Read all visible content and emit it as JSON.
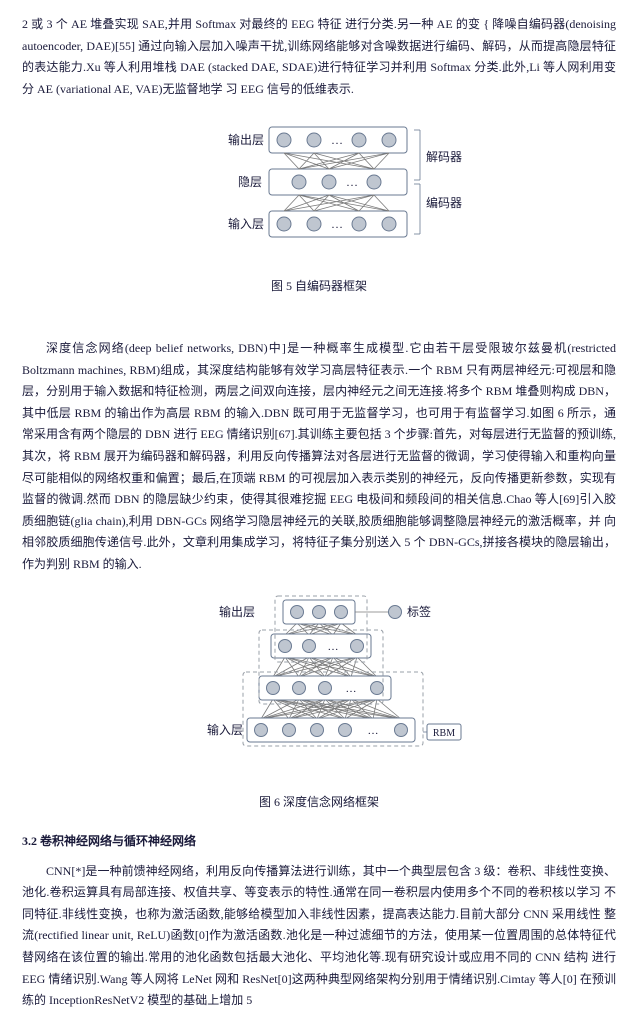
{
  "para1": "2 或 3 个 AE 堆叠实现 SAE,并用 Softmax 对最终的 EEG 特征 进行分类.另一种 AE 的变 { 降噪自编码器(denoising autoencoder, DAE)[55] 通过向输入层加入噪声干扰,训练网络能够对含噪数据进行编码、解码，从而提高隐层特征的表达能力.Xu 等人利用堆栈 DAE (stacked DAE, SDAE)进行特征学习并利用 Softmax 分类.此外,Li 等人网利用变分 AE (variational AE, VAE)无监督地学 习 EEG 信号的低维表示.",
  "fig5": {
    "caption": "图 5  自编码器框架",
    "labels": {
      "output": "输出层",
      "hidden": "隐层",
      "input": "输入层",
      "enc": "编码器",
      "dec": "解码器"
    },
    "colors": {
      "border": "#6a7a92",
      "fill": "#bfc6d0",
      "text": "#1a1a3a",
      "line": "#7a7a7a",
      "bg": "#ffffff"
    }
  },
  "para2": "深度信念网络(deep belief networks, DBN)中]是一种概率生成模型.它由若干层受限玻尔兹曼机(restricted Boltzmann machines, RBM)组成，其深度结构能够有效学习高层特征表示.一个 RBM 只有两层神经元:可视层和隐层，分别用于输入数据和特征检测，两层之间双向连接，层内神经元之间无连接.将多个 RBM 堆叠则构成 DBN，其中低层 RBM 的输出作为高层 RBM 的输入.DBN 既可用于无监督学习，也可用于有监督学习.如图 6 所示，通 常采用含有两个隐层的 DBN 进行 EEG 情绪识别[67].其训练主要包括 3 个步骤:首先，对每层进行无监督的预训练,其次，将 RBM 展开为编码器和解码器，利用反向传播算法对各层进行无监督的微调，学习使得输入和重构向量尽可能相似的网络权重和偏置；最后,在顶端 RBM 的可视层加入表示类别的神经元，反向传播更新参数，实现有 监督的微调.然而 DBN 的隐层缺少约束，使得其很难挖掘 EEG 电极间和频段间的相关信息.Chao 等人[69]引入胶质细胞链(glia chain),利用 DBN-GCs 网络学习隐层神经元的关联,胶质细胞能够调整隐层神经元的激活概率，并 向相邻胶质细胞传递信号.此外，文章利用集成学习，将特征子集分别送入 5 个 DBN-GCs,拼接各模块的隐层输出，作为判别 RBM 的输入.",
  "fig6": {
    "caption": "图 6 深度信念网络框架",
    "labels": {
      "output": "输出层",
      "input": "输入层",
      "rbm": "RBM",
      "tag": "标签"
    },
    "colors": {
      "border": "#6a7a92",
      "fill": "#bfc6d0",
      "dash": "#9aa0a8",
      "text": "#1a1a3a",
      "line": "#7a7a7a",
      "bg": "#ffffff"
    }
  },
  "section32": "3.2 卷积神经网络与循环神经网络",
  "para3": "CNN[*]是一种前馈神经网络，利用反向传播算法进行训练，其中一个典型层包含 3 级：卷积、非线性变换、池化.卷积运算具有局部连接、权值共享、等变表示的特性.通常在同一卷积层内使用多个不同的卷积核以学习 不同特征.非线性变换，也称为激活函数,能够给模型加入非线性因素，提高表达能力.目前大部分 CNN 采用线性 整流(rectified linear unit, ReLU)函数[0]作为激活函数.池化是一种过滤细节的方法，使用某一位置周围的总体特征代替网络在该位置的输出.常用的池化函数包括最大池化、平均池化等.现有研究设计或应用不同的 CNN 结构 进行 EEG 情绪识别.Wang 等人网将 LeNet 网和 ResNet[0]这两种典型网络架构分别用于情绪识别.Cimtay 等人[0] 在预训练的 InceptionResNetV2 模型的基础上增加 5"
}
